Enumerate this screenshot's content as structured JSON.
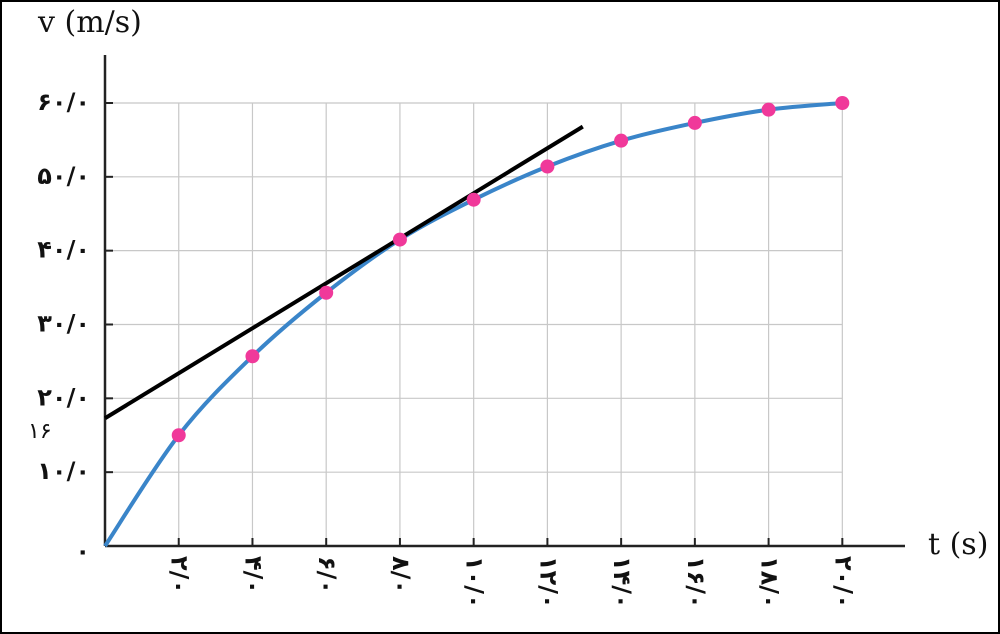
{
  "chart_data": {
    "type": "line",
    "x_label": "t (s)",
    "y_label": "v (m/s)",
    "annotation": "۱۶",
    "xlim": [
      0,
      21.7
    ],
    "ylim": [
      0,
      66.5
    ],
    "xticks": [
      {
        "value": 2,
        "label": "۲/۰"
      },
      {
        "value": 4,
        "label": "۴/۰"
      },
      {
        "value": 6,
        "label": "۶/۰"
      },
      {
        "value": 8,
        "label": "۸/۰"
      },
      {
        "value": 10,
        "label": "۱۰/۰"
      },
      {
        "value": 12,
        "label": "۱۲/۰"
      },
      {
        "value": 14,
        "label": "۱۴/۰"
      },
      {
        "value": 16,
        "label": "۱۶/۰"
      },
      {
        "value": 18,
        "label": "۱۸/۰"
      },
      {
        "value": 20,
        "label": "۲۰/۰"
      }
    ],
    "yticks": [
      {
        "value": 0,
        "label": "۰"
      },
      {
        "value": 10,
        "label": "۱۰/۰"
      },
      {
        "value": 20,
        "label": "۲۰/۰"
      },
      {
        "value": 30,
        "label": "۳۰/۰"
      },
      {
        "value": 40,
        "label": "۴۰/۰"
      },
      {
        "value": 50,
        "label": "۵۰/۰"
      },
      {
        "value": 60,
        "label": "۶۰/۰"
      }
    ],
    "grid": true,
    "curve": {
      "color": "#3a85c9",
      "x": [
        0,
        2,
        4,
        6,
        8,
        10,
        12,
        14,
        16,
        18,
        20
      ],
      "values": [
        0,
        15,
        25.7,
        34.3,
        41.5,
        46.9,
        51.4,
        54.9,
        57.3,
        59.1,
        60
      ]
    },
    "points": {
      "color": "#f0399a",
      "x": [
        2,
        4,
        6,
        8,
        10,
        12,
        14,
        16,
        18,
        20
      ],
      "values": [
        15,
        25.7,
        34.3,
        41.5,
        46.9,
        51.4,
        54.9,
        57.3,
        59.1,
        60
      ]
    },
    "tangent": {
      "color": "#000000",
      "x": [
        0,
        12.96
      ],
      "values": [
        17.3,
        56.8
      ]
    }
  }
}
